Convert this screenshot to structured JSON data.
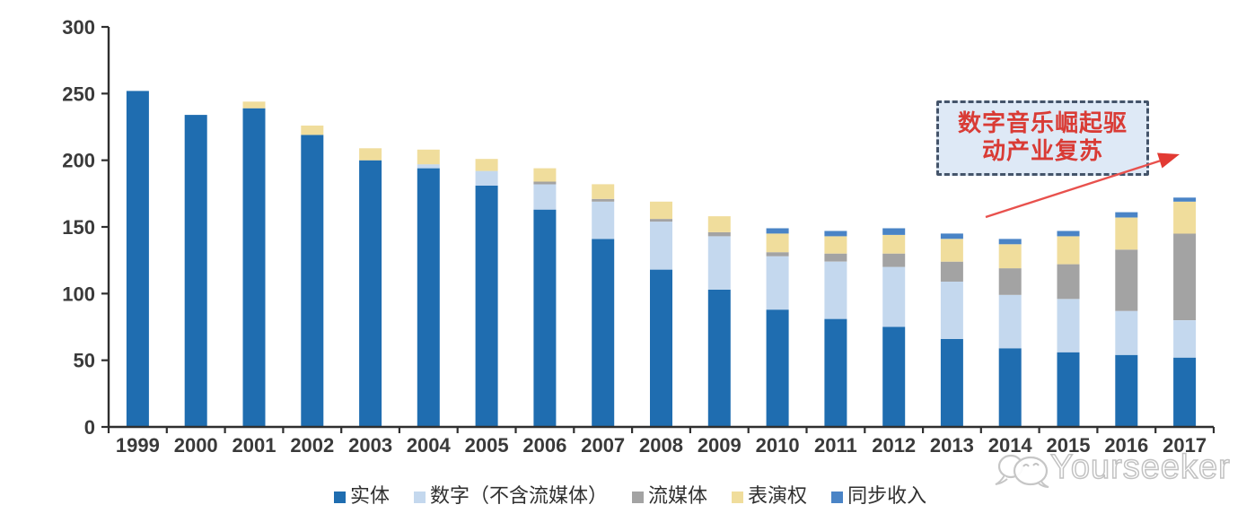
{
  "page": {
    "background": "#ffffff"
  },
  "chart_data": {
    "type": "bar",
    "stacked": true,
    "title": "",
    "xlabel": "",
    "ylabel": "",
    "ylim": [
      0,
      300
    ],
    "yticks": [
      0,
      50,
      100,
      150,
      200,
      250,
      300
    ],
    "grid": false,
    "legend_position": "bottom",
    "categories": [
      "1999",
      "2000",
      "2001",
      "2002",
      "2003",
      "2004",
      "2005",
      "2006",
      "2007",
      "2008",
      "2009",
      "2010",
      "2011",
      "2012",
      "2013",
      "2014",
      "2015",
      "2016",
      "2017"
    ],
    "series": [
      {
        "key": "physical",
        "name": "实体",
        "color": "#1f6db0",
        "values": [
          252,
          234,
          239,
          219,
          200,
          194,
          181,
          163,
          141,
          118,
          103,
          88,
          81,
          75,
          66,
          59,
          56,
          54,
          52
        ]
      },
      {
        "key": "digital",
        "name": "数字（不含流媒体）",
        "color": "#c4d8ee",
        "values": [
          0,
          0,
          0,
          0,
          0,
          3,
          11,
          19,
          28,
          36,
          40,
          40,
          43,
          45,
          43,
          40,
          40,
          33,
          28
        ]
      },
      {
        "key": "streaming",
        "name": "流媒体",
        "color": "#a3a3a3",
        "values": [
          0,
          0,
          0,
          0,
          0,
          0,
          0,
          2,
          2,
          2,
          3,
          3,
          6,
          10,
          15,
          20,
          26,
          46,
          65
        ]
      },
      {
        "key": "performance",
        "name": "表演权",
        "color": "#f0dd9c",
        "values": [
          0,
          0,
          5,
          7,
          9,
          11,
          9,
          10,
          11,
          13,
          12,
          14,
          13,
          14,
          17,
          18,
          21,
          24,
          24
        ]
      },
      {
        "key": "sync",
        "name": "同步收入",
        "color": "#4a84c6",
        "values": [
          0,
          0,
          0,
          0,
          0,
          0,
          0,
          0,
          0,
          0,
          0,
          4,
          4,
          5,
          4,
          4,
          4,
          4,
          3
        ]
      }
    ]
  },
  "annotation": {
    "text_line1": "数字音乐崛起驱",
    "text_line2": "动产业复苏",
    "text_color": "#d93b35",
    "box_fill": "#dee9f6",
    "box_border_color": "#44546a",
    "arrow_color": "#e8514d"
  },
  "watermark": {
    "text": "Yourseeker",
    "color": "#c2c2c2"
  },
  "axis": {
    "line_color": "#2f2f2f",
    "label_color": "#3a3a3a"
  }
}
